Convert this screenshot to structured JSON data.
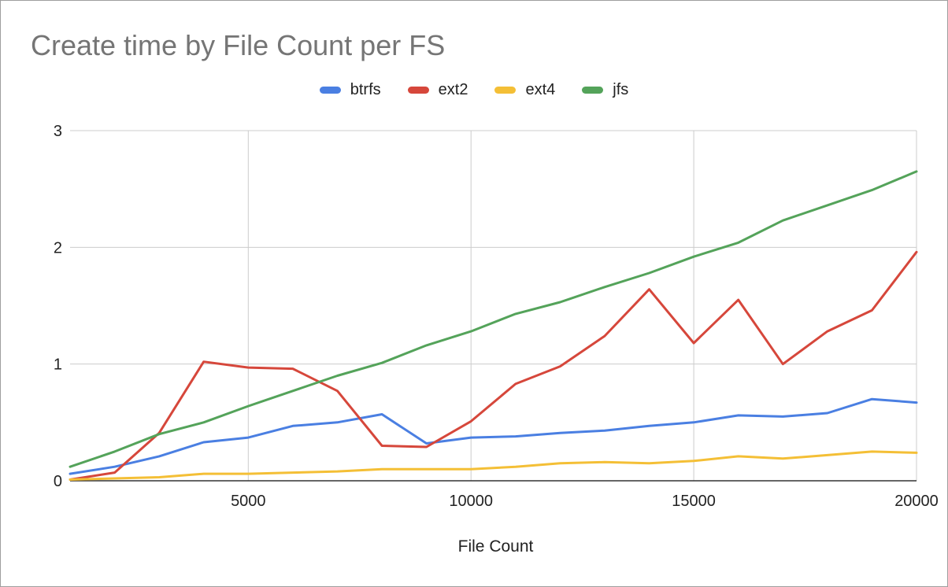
{
  "chart_data": {
    "type": "line",
    "title": "Create time by File Count per FS",
    "xlabel": "File Count",
    "ylabel": "",
    "xlim": [
      1000,
      20000
    ],
    "ylim": [
      0,
      3
    ],
    "xticks": [
      5000,
      10000,
      15000,
      20000
    ],
    "yticks": [
      0,
      1,
      2,
      3
    ],
    "grid": true,
    "legend_position": "top",
    "x": [
      1000,
      2000,
      3000,
      4000,
      5000,
      6000,
      7000,
      8000,
      9000,
      10000,
      11000,
      12000,
      13000,
      14000,
      15000,
      16000,
      17000,
      18000,
      19000,
      20000
    ],
    "series": [
      {
        "name": "btrfs",
        "color": "#4a7fe2",
        "values": [
          0.06,
          0.12,
          0.21,
          0.33,
          0.37,
          0.47,
          0.5,
          0.57,
          0.32,
          0.37,
          0.38,
          0.41,
          0.43,
          0.47,
          0.5,
          0.56,
          0.55,
          0.58,
          0.7,
          0.67
        ]
      },
      {
        "name": "ext2",
        "color": "#d6473b",
        "values": [
          0.01,
          0.07,
          0.41,
          1.02,
          0.97,
          0.96,
          0.77,
          0.3,
          0.29,
          0.51,
          0.83,
          0.98,
          1.24,
          1.64,
          1.18,
          1.55,
          1.0,
          1.28,
          1.46,
          1.96
        ]
      },
      {
        "name": "ext4",
        "color": "#f4bf36",
        "values": [
          0.01,
          0.02,
          0.03,
          0.06,
          0.06,
          0.07,
          0.08,
          0.1,
          0.1,
          0.1,
          0.12,
          0.15,
          0.16,
          0.15,
          0.17,
          0.21,
          0.19,
          0.22,
          0.25,
          0.24
        ]
      },
      {
        "name": "jfs",
        "color": "#54a35a",
        "values": [
          0.12,
          0.25,
          0.4,
          0.5,
          0.64,
          0.77,
          0.9,
          1.01,
          1.16,
          1.28,
          1.43,
          1.53,
          1.66,
          1.78,
          1.92,
          2.04,
          2.23,
          2.36,
          2.49,
          2.65
        ]
      }
    ]
  }
}
